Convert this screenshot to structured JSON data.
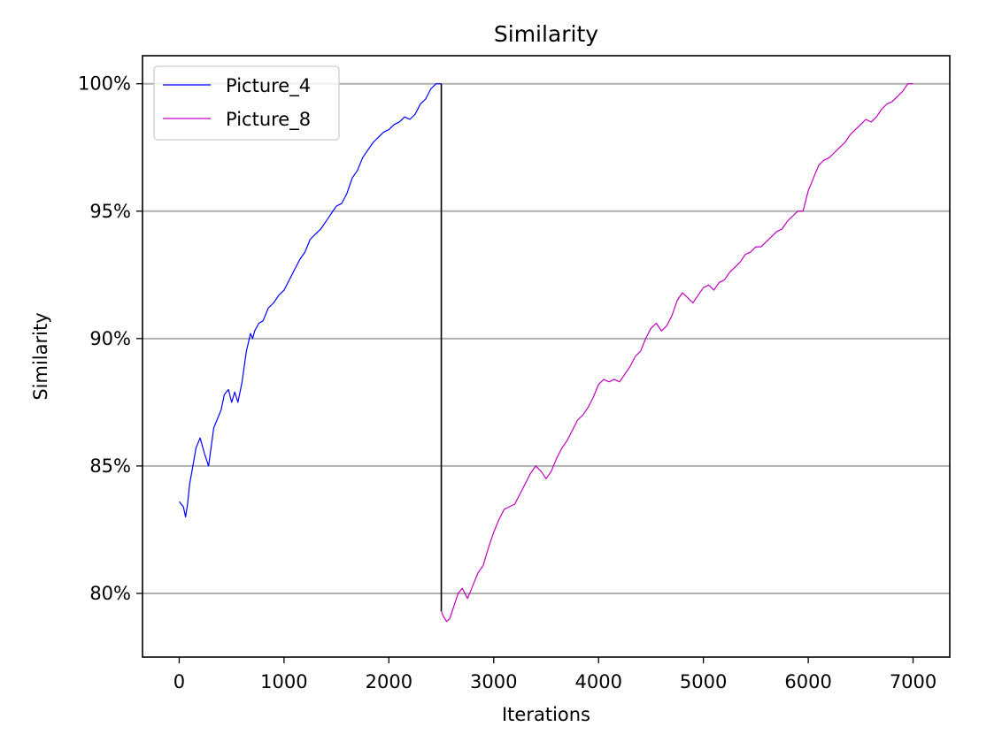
{
  "chart_data": {
    "type": "line",
    "title": "Similarity",
    "xlabel": "Iterations",
    "ylabel": "Similarity",
    "xlim": [
      -350,
      7350
    ],
    "ylim": [
      77.5,
      101.1
    ],
    "xticks": [
      0,
      1000,
      2000,
      3000,
      4000,
      5000,
      6000,
      7000
    ],
    "xtick_labels": [
      "0",
      "1000",
      "2000",
      "3000",
      "4000",
      "5000",
      "6000",
      "7000"
    ],
    "yticks": [
      80,
      85,
      90,
      95,
      100
    ],
    "ytick_labels": [
      "80%",
      "85%",
      "90%",
      "95%",
      "100%"
    ],
    "grid": "horizontal",
    "legend_position": "top-left",
    "series": [
      {
        "name": "Picture_4",
        "color": "#0000ff",
        "x": [
          0,
          40,
          60,
          80,
          100,
          130,
          160,
          200,
          240,
          280,
          300,
          330,
          360,
          400,
          430,
          470,
          500,
          530,
          560,
          600,
          640,
          680,
          700,
          720,
          760,
          800,
          850,
          900,
          950,
          1000,
          1050,
          1100,
          1150,
          1200,
          1250,
          1300,
          1350,
          1400,
          1450,
          1500,
          1550,
          1600,
          1650,
          1700,
          1750,
          1800,
          1850,
          1900,
          1950,
          2000,
          2050,
          2100,
          2150,
          2200,
          2250,
          2300,
          2350,
          2400,
          2450,
          2500
        ],
        "y": [
          83.6,
          83.4,
          83.0,
          83.5,
          84.3,
          85.0,
          85.7,
          86.1,
          85.5,
          85.0,
          85.6,
          86.5,
          86.8,
          87.2,
          87.8,
          88.0,
          87.5,
          87.9,
          87.5,
          88.3,
          89.5,
          90.2,
          90.0,
          90.3,
          90.6,
          90.7,
          91.2,
          91.4,
          91.7,
          91.9,
          92.3,
          92.7,
          93.1,
          93.4,
          93.9,
          94.1,
          94.3,
          94.6,
          94.9,
          95.2,
          95.3,
          95.7,
          96.3,
          96.6,
          97.1,
          97.4,
          97.7,
          97.9,
          98.1,
          98.2,
          98.4,
          98.5,
          98.7,
          98.6,
          98.8,
          99.2,
          99.4,
          99.8,
          100.0,
          100.0
        ]
      },
      {
        "name": "Picture_8",
        "color": "#bf00bf",
        "x": [
          2500,
          2520,
          2550,
          2580,
          2620,
          2660,
          2700,
          2750,
          2800,
          2850,
          2900,
          2950,
          3000,
          3050,
          3100,
          3150,
          3200,
          3250,
          3300,
          3350,
          3400,
          3450,
          3500,
          3550,
          3600,
          3650,
          3700,
          3750,
          3800,
          3850,
          3900,
          3950,
          4000,
          4050,
          4100,
          4150,
          4200,
          4250,
          4300,
          4350,
          4400,
          4450,
          4500,
          4550,
          4600,
          4650,
          4700,
          4750,
          4800,
          4850,
          4900,
          4950,
          5000,
          5050,
          5100,
          5150,
          5200,
          5250,
          5300,
          5350,
          5400,
          5450,
          5500,
          5550,
          5600,
          5650,
          5700,
          5750,
          5800,
          5850,
          5900,
          5950,
          6000,
          6050,
          6100,
          6150,
          6200,
          6250,
          6300,
          6350,
          6400,
          6450,
          6500,
          6550,
          6600,
          6650,
          6700,
          6750,
          6800,
          6850,
          6900,
          6950,
          7000
        ],
        "y": [
          79.3,
          79.1,
          78.9,
          79.0,
          79.5,
          80.0,
          80.2,
          79.8,
          80.3,
          80.8,
          81.1,
          81.8,
          82.4,
          82.9,
          83.3,
          83.4,
          83.5,
          83.9,
          84.3,
          84.7,
          85.0,
          84.8,
          84.5,
          84.8,
          85.3,
          85.7,
          86.0,
          86.4,
          86.8,
          87.0,
          87.3,
          87.7,
          88.2,
          88.4,
          88.3,
          88.4,
          88.3,
          88.6,
          88.9,
          89.3,
          89.5,
          90.0,
          90.4,
          90.6,
          90.3,
          90.5,
          90.9,
          91.5,
          91.8,
          91.6,
          91.4,
          91.7,
          92.0,
          92.1,
          91.9,
          92.2,
          92.3,
          92.6,
          92.8,
          93.0,
          93.3,
          93.4,
          93.6,
          93.6,
          93.8,
          94.0,
          94.2,
          94.3,
          94.6,
          94.8,
          95.0,
          95.0,
          95.8,
          96.3,
          96.8,
          97.0,
          97.1,
          97.3,
          97.5,
          97.7,
          98.0,
          98.2,
          98.4,
          98.6,
          98.5,
          98.7,
          99.0,
          99.2,
          99.3,
          99.5,
          99.7,
          100.0,
          100.0
        ]
      }
    ]
  }
}
